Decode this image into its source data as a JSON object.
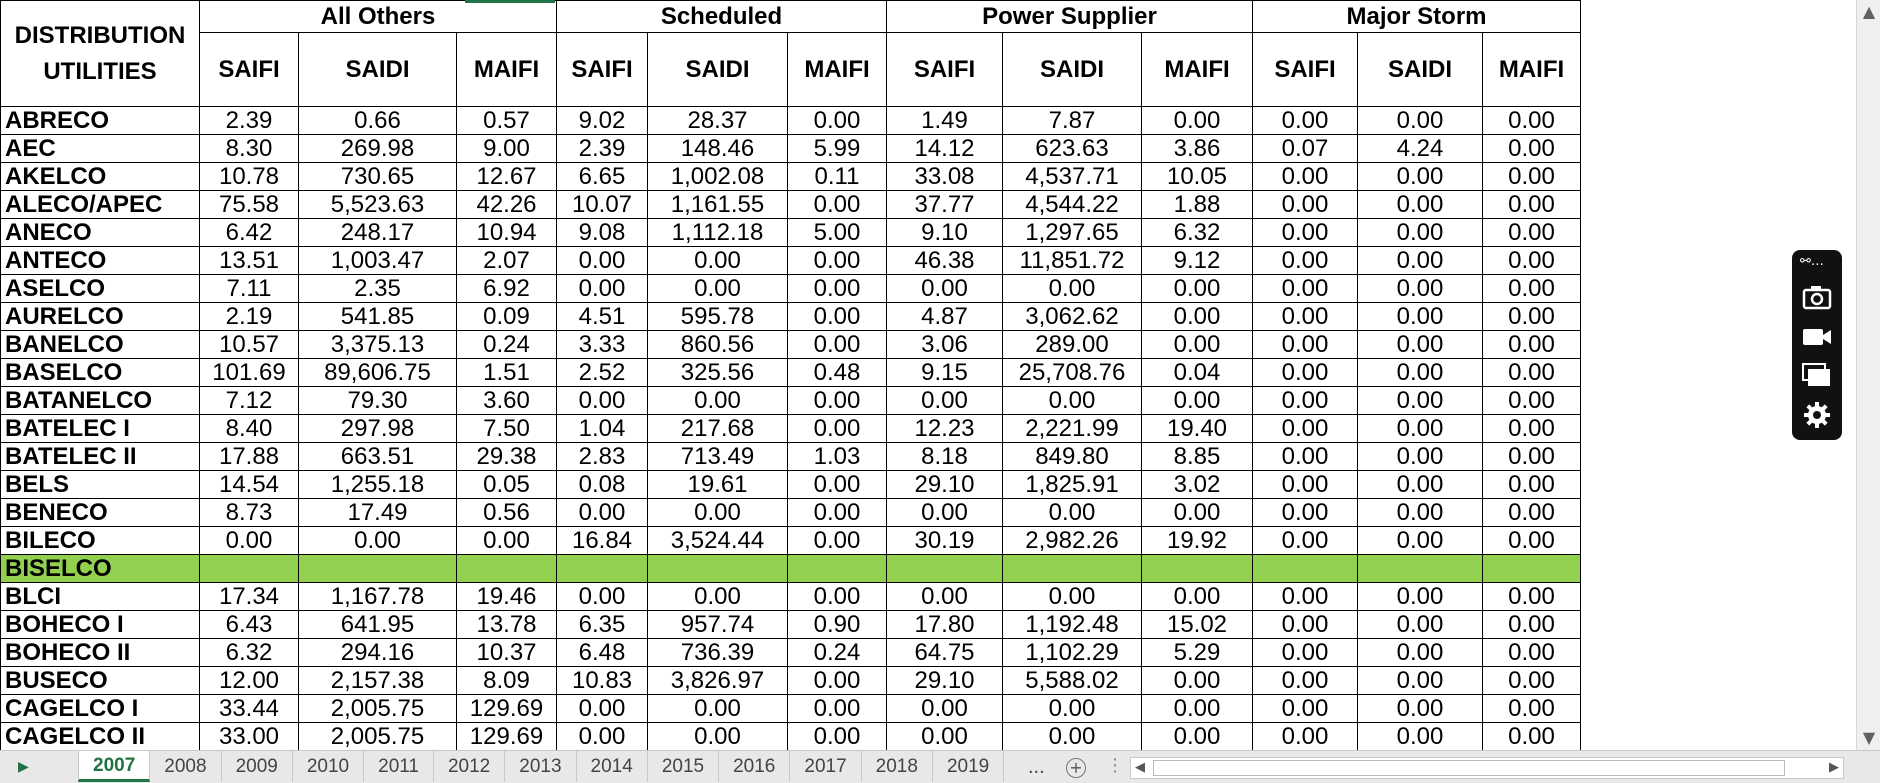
{
  "header": {
    "corner_label": "DISTRIBUTION UTILITIES",
    "groups": [
      "All Others",
      "Scheduled",
      "Power Supplier",
      "Major Storm"
    ],
    "subcols": [
      "SAIFI",
      "SAIDI",
      "MAIFI",
      "SAIFI",
      "SAIDI",
      "MAIFI",
      "SAIFI",
      "SAIDI",
      "MAIFI",
      "SAIFI",
      "SAIDI",
      "MAIFI"
    ]
  },
  "rows": [
    {
      "name": "ABRECO",
      "values": [
        "2.39",
        "0.66",
        "0.57",
        "9.02",
        "28.37",
        "0.00",
        "1.49",
        "7.87",
        "0.00",
        "0.00",
        "0.00",
        "0.00"
      ]
    },
    {
      "name": "AEC",
      "values": [
        "8.30",
        "269.98",
        "9.00",
        "2.39",
        "148.46",
        "5.99",
        "14.12",
        "623.63",
        "3.86",
        "0.07",
        "4.24",
        "0.00"
      ]
    },
    {
      "name": "AKELCO",
      "values": [
        "10.78",
        "730.65",
        "12.67",
        "6.65",
        "1,002.08",
        "0.11",
        "33.08",
        "4,537.71",
        "10.05",
        "0.00",
        "0.00",
        "0.00"
      ]
    },
    {
      "name": "ALECO/APEC",
      "values": [
        "75.58",
        "5,523.63",
        "42.26",
        "10.07",
        "1,161.55",
        "0.00",
        "37.77",
        "4,544.22",
        "1.88",
        "0.00",
        "0.00",
        "0.00"
      ]
    },
    {
      "name": "ANECO",
      "values": [
        "6.42",
        "248.17",
        "10.94",
        "9.08",
        "1,112.18",
        "5.00",
        "9.10",
        "1,297.65",
        "6.32",
        "0.00",
        "0.00",
        "0.00"
      ]
    },
    {
      "name": "ANTECO",
      "values": [
        "13.51",
        "1,003.47",
        "2.07",
        "0.00",
        "0.00",
        "0.00",
        "46.38",
        "11,851.72",
        "9.12",
        "0.00",
        "0.00",
        "0.00"
      ]
    },
    {
      "name": "ASELCO",
      "values": [
        "7.11",
        "2.35",
        "6.92",
        "0.00",
        "0.00",
        "0.00",
        "0.00",
        "0.00",
        "0.00",
        "0.00",
        "0.00",
        "0.00"
      ]
    },
    {
      "name": "AURELCO",
      "values": [
        "2.19",
        "541.85",
        "0.09",
        "4.51",
        "595.78",
        "0.00",
        "4.87",
        "3,062.62",
        "0.00",
        "0.00",
        "0.00",
        "0.00"
      ]
    },
    {
      "name": "BANELCO",
      "values": [
        "10.57",
        "3,375.13",
        "0.24",
        "3.33",
        "860.56",
        "0.00",
        "3.06",
        "289.00",
        "0.00",
        "0.00",
        "0.00",
        "0.00"
      ]
    },
    {
      "name": "BASELCO",
      "values": [
        "101.69",
        "89,606.75",
        "1.51",
        "2.52",
        "325.56",
        "0.48",
        "9.15",
        "25,708.76",
        "0.04",
        "0.00",
        "0.00",
        "0.00"
      ]
    },
    {
      "name": "BATANELCO",
      "values": [
        "7.12",
        "79.30",
        "3.60",
        "0.00",
        "0.00",
        "0.00",
        "0.00",
        "0.00",
        "0.00",
        "0.00",
        "0.00",
        "0.00"
      ]
    },
    {
      "name": "BATELEC I",
      "values": [
        "8.40",
        "297.98",
        "7.50",
        "1.04",
        "217.68",
        "0.00",
        "12.23",
        "2,221.99",
        "19.40",
        "0.00",
        "0.00",
        "0.00"
      ]
    },
    {
      "name": "BATELEC II",
      "values": [
        "17.88",
        "663.51",
        "29.38",
        "2.83",
        "713.49",
        "1.03",
        "8.18",
        "849.80",
        "8.85",
        "0.00",
        "0.00",
        "0.00"
      ]
    },
    {
      "name": "BELS",
      "values": [
        "14.54",
        "1,255.18",
        "0.05",
        "0.08",
        "19.61",
        "0.00",
        "29.10",
        "1,825.91",
        "3.02",
        "0.00",
        "0.00",
        "0.00"
      ]
    },
    {
      "name": "BENECO",
      "values": [
        "8.73",
        "17.49",
        "0.56",
        "0.00",
        "0.00",
        "0.00",
        "0.00",
        "0.00",
        "0.00",
        "0.00",
        "0.00",
        "0.00"
      ]
    },
    {
      "name": "BILECO",
      "values": [
        "0.00",
        "0.00",
        "0.00",
        "16.84",
        "3,524.44",
        "0.00",
        "30.19",
        "2,982.26",
        "19.92",
        "0.00",
        "0.00",
        "0.00"
      ]
    },
    {
      "name": "BISELCO",
      "highlight": true,
      "values": [
        "",
        "",
        "",
        "",
        "",
        "",
        "",
        "",
        "",
        "",
        "",
        ""
      ]
    },
    {
      "name": "BLCI",
      "values": [
        "17.34",
        "1,167.78",
        "19.46",
        "0.00",
        "0.00",
        "0.00",
        "0.00",
        "0.00",
        "0.00",
        "0.00",
        "0.00",
        "0.00"
      ]
    },
    {
      "name": "BOHECO I",
      "values": [
        "6.43",
        "641.95",
        "13.78",
        "6.35",
        "957.74",
        "0.90",
        "17.80",
        "1,192.48",
        "15.02",
        "0.00",
        "0.00",
        "0.00"
      ]
    },
    {
      "name": "BOHECO II",
      "values": [
        "6.32",
        "294.16",
        "10.37",
        "6.48",
        "736.39",
        "0.24",
        "64.75",
        "1,102.29",
        "5.29",
        "0.00",
        "0.00",
        "0.00"
      ]
    },
    {
      "name": "BUSECO",
      "values": [
        "12.00",
        "2,157.38",
        "8.09",
        "10.83",
        "3,826.97",
        "0.00",
        "29.10",
        "5,588.02",
        "0.00",
        "0.00",
        "0.00",
        "0.00"
      ]
    },
    {
      "name": "CAGELCO I",
      "values": [
        "33.44",
        "2,005.75",
        "129.69",
        "0.00",
        "0.00",
        "0.00",
        "0.00",
        "0.00",
        "0.00",
        "0.00",
        "0.00",
        "0.00"
      ]
    },
    {
      "name": "CAGELCO II",
      "values": [
        "33.00",
        "2,005.75",
        "129.69",
        "0.00",
        "0.00",
        "0.00",
        "0.00",
        "0.00",
        "0.00",
        "0.00",
        "0.00",
        "0.00"
      ]
    }
  ],
  "sheet_tabs": [
    "2007",
    "2008",
    "2009",
    "2010",
    "2011",
    "2012",
    "2013",
    "2014",
    "2015",
    "2016",
    "2017",
    "2018",
    "2019"
  ],
  "active_tab": "2007",
  "more_tabs_label": "...",
  "colors": {
    "highlight": "#92d050",
    "accent": "#217346"
  },
  "toolbar_icons": [
    "record-menu-icon",
    "camera-icon",
    "video-icon",
    "window-icon",
    "gear-icon"
  ]
}
